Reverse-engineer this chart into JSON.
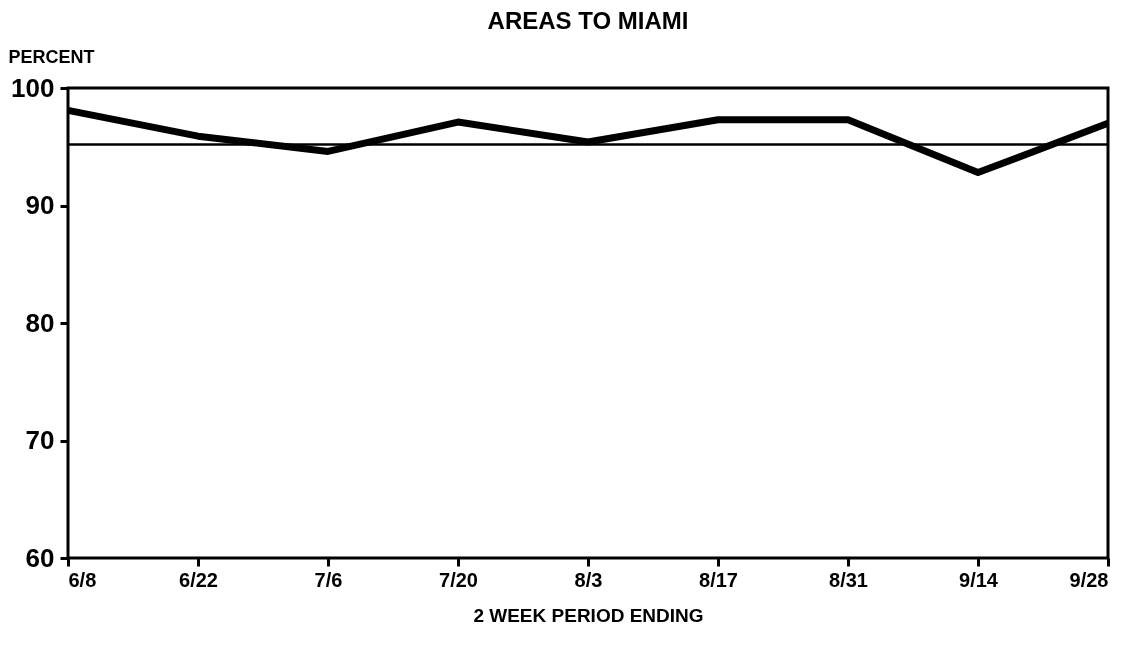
{
  "chart_data": {
    "type": "line",
    "title": "AREAS TO MIAMI",
    "ylabel": "PERCENT",
    "xlabel": "2 WEEK PERIOD ENDING",
    "categories": [
      "6/8",
      "6/22",
      "7/6",
      "7/20",
      "8/3",
      "8/17",
      "8/31",
      "9/14",
      "9/28"
    ],
    "series": [
      {
        "color": "#000000",
        "values": [
          98.1,
          95.9,
          94.6,
          97.1,
          95.4,
          97.3,
          97.3,
          92.8,
          97.0
        ]
      }
    ],
    "ylim": [
      60,
      100
    ],
    "yticks": [
      60,
      70,
      80,
      90,
      100
    ],
    "ref_lines": [
      {
        "axis": "y",
        "value": 95.2,
        "color": "#000000"
      }
    ],
    "grid": false,
    "legend": false,
    "marker": "none",
    "line_style": "solid"
  }
}
